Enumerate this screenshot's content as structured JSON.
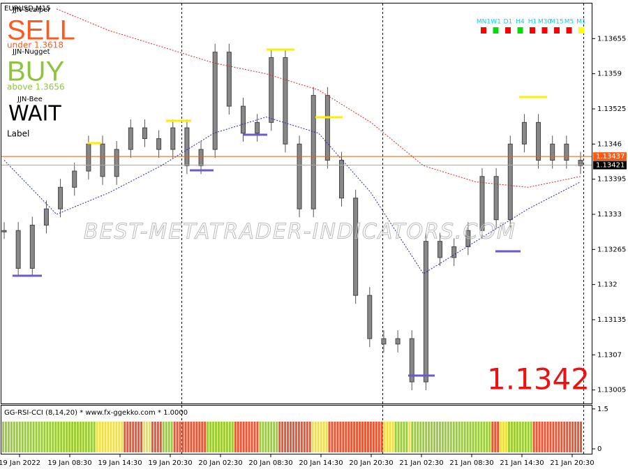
{
  "window": {
    "symbol": "EURUSD,M15"
  },
  "panel": {
    "scalper_name": "JJN-Scalper",
    "sell_signal": "SELL",
    "sell_note": "under 1.3618",
    "nugget_name": "JJN-Nugget",
    "buy_signal": "BUY",
    "buy_note": "above 1.3656",
    "bee_name": "JJN-Bee",
    "wait_signal": "WAIT",
    "label": "Label"
  },
  "timeframes": [
    {
      "label": "MN1",
      "color": "#ff0000"
    },
    {
      "label": "W1",
      "color": "#00dd00"
    },
    {
      "label": "D1",
      "color": "#ff0000"
    },
    {
      "label": "H4",
      "color": "#00dd00"
    },
    {
      "label": "H1",
      "color": "#ff0000"
    },
    {
      "label": "M30",
      "color": "#ff0000"
    },
    {
      "label": "M15",
      "color": "#ff0000"
    },
    {
      "label": "M5",
      "color": "#ff0000"
    },
    {
      "label": "M1",
      "color": "#ffff00"
    }
  ],
  "price_axis": {
    "ylim": [
      1.1298,
      1.1372
    ],
    "ticks": [
      1.13655,
      1.1359,
      1.13525,
      1.1346,
      1.13395,
      1.1333,
      1.13265,
      1.132,
      1.13135,
      1.1307,
      1.13005
    ]
  },
  "ask_line": 1.13437,
  "bid_line": 1.13421,
  "big_price": 1.1342,
  "closes": [
    1.133,
    1.1323,
    1.1331,
    1.1334,
    1.1338,
    1.1341,
    1.1346,
    1.134,
    1.1345,
    1.1349,
    1.1347,
    1.1345,
    1.1349,
    1.1342,
    1.1345,
    1.1363,
    1.1353,
    1.1348,
    1.135,
    1.1362,
    1.1346,
    1.1334,
    1.1355,
    1.1343,
    1.1336,
    1.1318,
    1.131,
    1.1309,
    1.131,
    1.1302,
    1.1328,
    1.1325,
    1.1327,
    1.133,
    1.134,
    1.1332,
    1.1346,
    1.135,
    1.1343,
    1.1346,
    1.1343,
    1.1342
  ],
  "ma_slow": [
    null,
    1.1371,
    1.1367,
    1.1364,
    1.1361,
    1.1359,
    1.1356,
    1.135,
    1.1342,
    1.1339,
    1.1338,
    1.134
  ],
  "ma_fast": [
    1.1343,
    1.1333,
    1.1337,
    1.1342,
    1.1348,
    1.1351,
    1.1348,
    1.1337,
    1.1322,
    1.1328,
    1.1334,
    1.1339
  ],
  "watermark": "BEST-METATRADER-INDICATORS.COM",
  "time_labels": [
    "19 Jan 2022",
    "19 Jan 08:30",
    "19 Jan 14:30",
    "19 Jan 20:30",
    "20 Jan 02:30",
    "20 Jan 08:30",
    "20 Jan 14:30",
    "20 Jan 20:30",
    "21 Jan 02:30",
    "21 Jan 08:30",
    "21 Jan 14:30",
    "21 Jan 20:30"
  ],
  "indicator": {
    "title": "GG-RSI-CCI (8,14,20) * www.fx-ggekko.com * 1.0000",
    "ticks": [
      1.5,
      0
    ],
    "segments": [
      {
        "color": "#9acd32",
        "bars": 34
      },
      {
        "color": "#f0e040",
        "bars": 10
      },
      {
        "color": "#ee5533",
        "bars": 7
      },
      {
        "color": "#f0e040",
        "bars": 3
      },
      {
        "color": "#ee5533",
        "bars": 4
      },
      {
        "color": "#9acd32",
        "bars": 4
      },
      {
        "color": "#ee5533",
        "bars": 12
      },
      {
        "color": "#9acd32",
        "bars": 10
      },
      {
        "color": "#ee5533",
        "bars": 9
      },
      {
        "color": "#9acd32",
        "bars": 7
      },
      {
        "color": "#ee5533",
        "bars": 12
      },
      {
        "color": "#f0e040",
        "bars": 6
      },
      {
        "color": "#ee5533",
        "bars": 20
      },
      {
        "color": "#f0e040",
        "bars": 4
      },
      {
        "color": "#9acd32",
        "bars": 5
      },
      {
        "color": "#f0e040",
        "bars": 1
      },
      {
        "color": "#9acd32",
        "bars": 29
      },
      {
        "color": "#ee5533",
        "bars": 3
      },
      {
        "color": "#f0e040",
        "bars": 3
      },
      {
        "color": "#9acd32",
        "bars": 9
      },
      {
        "color": "#ee5533",
        "bars": 18
      }
    ]
  }
}
